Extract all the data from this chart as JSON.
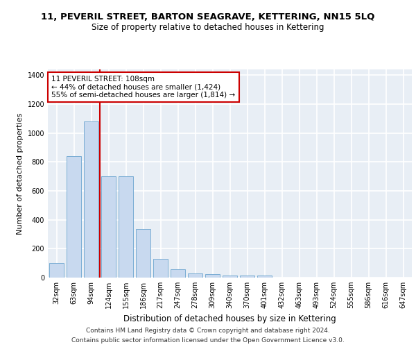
{
  "title_line1": "11, PEVERIL STREET, BARTON SEAGRAVE, KETTERING, NN15 5LQ",
  "title_line2": "Size of property relative to detached houses in Kettering",
  "xlabel": "Distribution of detached houses by size in Kettering",
  "ylabel": "Number of detached properties",
  "categories": [
    "32sqm",
    "63sqm",
    "94sqm",
    "124sqm",
    "155sqm",
    "186sqm",
    "217sqm",
    "247sqm",
    "278sqm",
    "309sqm",
    "340sqm",
    "370sqm",
    "401sqm",
    "432sqm",
    "463sqm",
    "493sqm",
    "524sqm",
    "555sqm",
    "586sqm",
    "616sqm",
    "647sqm"
  ],
  "values": [
    100,
    840,
    1080,
    700,
    700,
    335,
    130,
    60,
    30,
    25,
    15,
    15,
    15,
    0,
    0,
    0,
    0,
    0,
    0,
    0,
    0
  ],
  "bar_color": "#c8d9ef",
  "bar_edge_color": "#7aadd4",
  "vline_x": 2.5,
  "vline_color": "#cc0000",
  "annotation_text": "11 PEVERIL STREET: 108sqm\n← 44% of detached houses are smaller (1,424)\n55% of semi-detached houses are larger (1,814) →",
  "annotation_box_color": "#ffffff",
  "annotation_box_edge": "#cc0000",
  "ylim": [
    0,
    1440
  ],
  "yticks": [
    0,
    200,
    400,
    600,
    800,
    1000,
    1200,
    1400
  ],
  "background_color": "#ffffff",
  "plot_bg_color": "#e8eef5",
  "grid_color": "#ffffff",
  "footer_line1": "Contains HM Land Registry data © Crown copyright and database right 2024.",
  "footer_line2": "Contains public sector information licensed under the Open Government Licence v3.0.",
  "title_fontsize": 9.5,
  "subtitle_fontsize": 8.5,
  "ylabel_fontsize": 8,
  "xlabel_fontsize": 8.5,
  "tick_fontsize": 7,
  "annotation_fontsize": 7.5,
  "footer_fontsize": 6.5
}
